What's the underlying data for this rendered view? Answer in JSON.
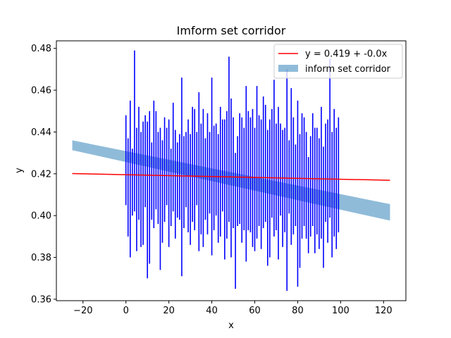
{
  "chart_data": {
    "type": "line",
    "title": "Imform set corridor",
    "xlabel": "x",
    "ylabel": "y",
    "xlim": [
      -32.4,
      130.4
    ],
    "ylim": [
      0.3593,
      0.4836
    ],
    "xticks": [
      -20,
      0,
      20,
      40,
      60,
      80,
      100,
      120
    ],
    "xtick_labels": [
      "−20",
      "0",
      "20",
      "40",
      "60",
      "80",
      "100",
      "120"
    ],
    "yticks": [
      0.36,
      0.38,
      0.4,
      0.42,
      0.44,
      0.46,
      0.48
    ],
    "ytick_labels": [
      "0.36",
      "0.38",
      "0.40",
      "0.42",
      "0.44",
      "0.46",
      "0.48"
    ],
    "grid": false,
    "legend_placement": "top-right",
    "regression_line": {
      "name": "y = 0.419 + -0.0x",
      "color": "#ff0000",
      "x": [
        -25,
        123
      ],
      "y": [
        0.4201,
        0.4169
      ]
    },
    "corridor": {
      "name": "inform set corridor",
      "color": "#1f77b4",
      "alpha": 0.5,
      "x": [
        -25,
        123
      ],
      "upper": [
        0.436,
        0.4055
      ],
      "lower": [
        0.4313,
        0.3976
      ]
    },
    "intervals": {
      "color": "#0000ff",
      "x": [
        0,
        1,
        2,
        3,
        4,
        5,
        6,
        7,
        8,
        9,
        10,
        11,
        12,
        13,
        14,
        15,
        16,
        17,
        18,
        19,
        20,
        21,
        22,
        23,
        24,
        25,
        26,
        27,
        28,
        29,
        30,
        31,
        32,
        33,
        34,
        35,
        36,
        37,
        38,
        39,
        40,
        41,
        42,
        43,
        44,
        45,
        46,
        47,
        48,
        49,
        50,
        51,
        52,
        53,
        54,
        55,
        56,
        57,
        58,
        59,
        60,
        61,
        62,
        63,
        64,
        65,
        66,
        67,
        68,
        69,
        70,
        71,
        72,
        73,
        74,
        75,
        76,
        77,
        78,
        79,
        80,
        81,
        82,
        83,
        84,
        85,
        86,
        87,
        88,
        89,
        90,
        91,
        92,
        93,
        94,
        95,
        96,
        97,
        98,
        99
      ],
      "low": [
        0.405,
        0.39,
        0.38,
        0.4,
        0.402,
        0.383,
        0.398,
        0.385,
        0.386,
        0.404,
        0.37,
        0.377,
        0.398,
        0.394,
        0.403,
        0.396,
        0.374,
        0.387,
        0.397,
        0.405,
        0.385,
        0.395,
        0.402,
        0.389,
        0.399,
        0.398,
        0.371,
        0.394,
        0.404,
        0.392,
        0.386,
        0.397,
        0.393,
        0.405,
        0.383,
        0.391,
        0.385,
        0.398,
        0.391,
        0.401,
        0.381,
        0.393,
        0.4,
        0.387,
        0.39,
        0.402,
        0.379,
        0.389,
        0.397,
        0.38,
        0.394,
        0.365,
        0.395,
        0.396,
        0.387,
        0.393,
        0.378,
        0.393,
        0.392,
        0.385,
        0.383,
        0.389,
        0.395,
        0.384,
        0.394,
        0.397,
        0.376,
        0.38,
        0.399,
        0.39,
        0.393,
        0.379,
        0.4,
        0.385,
        0.392,
        0.364,
        0.401,
        0.386,
        0.391,
        0.395,
        0.366,
        0.375,
        0.389,
        0.395,
        0.389,
        0.382,
        0.39,
        0.395,
        0.382,
        0.391,
        0.384,
        0.389,
        0.375,
        0.397,
        0.387,
        0.399,
        0.38,
        0.39,
        0.384,
        0.392
      ],
      "high": [
        0.448,
        0.437,
        0.455,
        0.432,
        0.479,
        0.442,
        0.452,
        0.44,
        0.445,
        0.448,
        0.445,
        0.45,
        0.435,
        0.455,
        0.45,
        0.44,
        0.442,
        0.436,
        0.447,
        0.442,
        0.446,
        0.432,
        0.454,
        0.441,
        0.435,
        0.439,
        0.466,
        0.438,
        0.44,
        0.446,
        0.439,
        0.452,
        0.451,
        0.44,
        0.459,
        0.444,
        0.451,
        0.437,
        0.449,
        0.44,
        0.466,
        0.443,
        0.444,
        0.439,
        0.452,
        0.446,
        0.446,
        0.45,
        0.476,
        0.456,
        0.447,
        0.43,
        0.438,
        0.449,
        0.447,
        0.442,
        0.462,
        0.45,
        0.447,
        0.451,
        0.442,
        0.462,
        0.448,
        0.446,
        0.457,
        0.453,
        0.441,
        0.446,
        0.451,
        0.465,
        0.444,
        0.452,
        0.444,
        0.441,
        0.442,
        0.47,
        0.436,
        0.461,
        0.447,
        0.434,
        0.455,
        0.439,
        0.449,
        0.447,
        0.44,
        0.428,
        0.438,
        0.449,
        0.442,
        0.442,
        0.437,
        0.452,
        0.433,
        0.444,
        0.446,
        0.475,
        0.44,
        0.451,
        0.442,
        0.447
      ]
    }
  }
}
